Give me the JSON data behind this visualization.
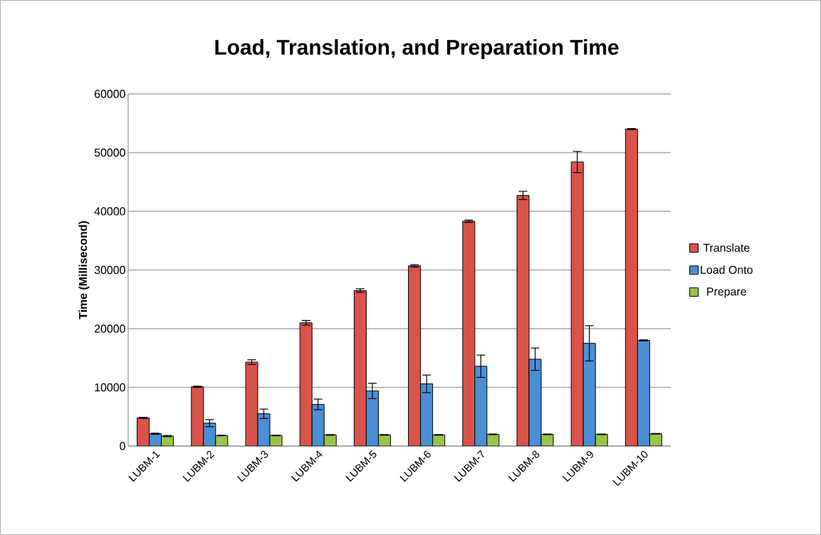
{
  "chart_data": {
    "type": "bar",
    "title": "Load, Translation, and Preparation Time",
    "ylabel": "Time (Millisecond)",
    "categories": [
      "LUBM-1",
      "LUBM-2",
      "LUBM-3",
      "LUBM-4",
      "LUBM-5",
      "LUBM-6",
      "LUBM-7",
      "LUBM-8",
      "LUBM-9",
      "LUBM-10"
    ],
    "series": [
      {
        "name": "Translate",
        "color": "#d9534a",
        "values": [
          4800,
          10100,
          14300,
          21000,
          26500,
          30700,
          38300,
          42700,
          48400,
          54000
        ],
        "errors": [
          100,
          100,
          400,
          400,
          300,
          200,
          200,
          700,
          1800,
          100
        ]
      },
      {
        "name": "Load Onto",
        "color": "#4a8fd4",
        "values": [
          2100,
          3900,
          5500,
          7100,
          9400,
          10600,
          13600,
          14800,
          17500,
          18000
        ],
        "errors": [
          100,
          600,
          800,
          900,
          1300,
          1500,
          1900,
          1900,
          3000,
          100
        ]
      },
      {
        "name": "Prepare",
        "color": "#9bc24a",
        "values": [
          1700,
          1800,
          1800,
          1900,
          1900,
          1900,
          2000,
          2000,
          2000,
          2100
        ],
        "errors": [
          100,
          50,
          50,
          50,
          50,
          50,
          50,
          50,
          50,
          50
        ]
      }
    ],
    "ylim": [
      0,
      60000
    ],
    "yticks": [
      0,
      10000,
      20000,
      30000,
      40000,
      50000,
      60000
    ],
    "grid": "y",
    "legend": "right"
  }
}
